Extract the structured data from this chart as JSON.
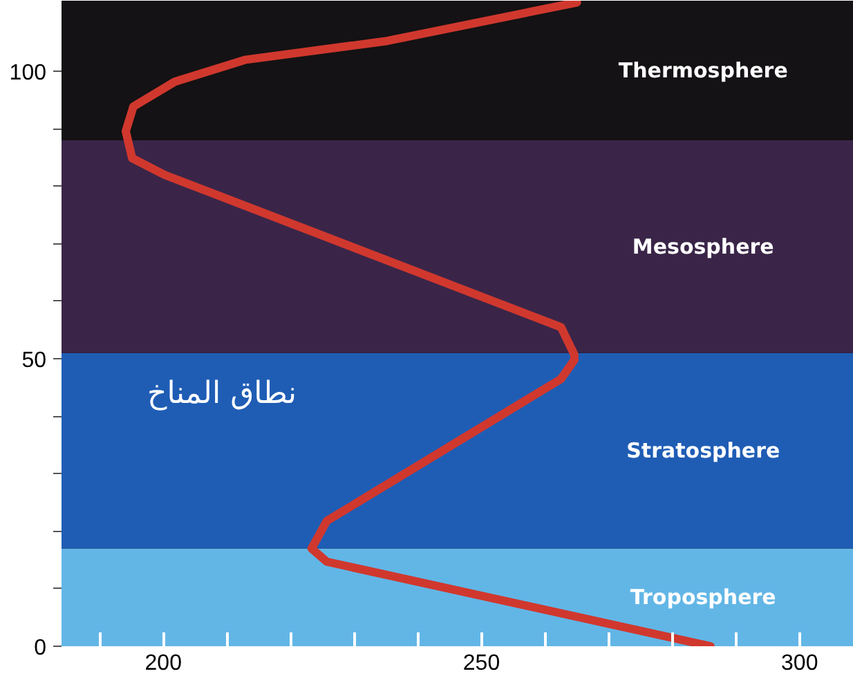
{
  "chart_data": {
    "type": "line",
    "x": [
      286,
      225.7,
      223.3,
      225.7,
      262.5,
      264.6,
      264.6,
      262.5,
      200.2,
      195.1,
      194.1,
      195.3,
      201.8,
      212.8,
      235.2,
      265
    ],
    "series": [
      {
        "color": "#d0382e",
        "values": [
          0,
          14.7,
          17,
          21.8,
          46.5,
          49.8,
          50.7,
          55.5,
          82,
          84.9,
          89.6,
          93.9,
          98.2,
          102,
          105.3,
          112
        ]
      }
    ],
    "xlim": [
      184,
      308.5
    ],
    "ylim": [
      0,
      112.3
    ],
    "xticks": [
      {
        "value": 190,
        "label": null
      },
      200,
      {
        "value": 210,
        "label": null
      },
      {
        "value": 220,
        "label": null
      },
      {
        "value": 230,
        "label": null
      },
      {
        "value": 240,
        "label": null
      },
      250,
      {
        "value": 260,
        "label": null
      },
      {
        "value": 270,
        "label": null
      },
      {
        "value": 280,
        "label": null
      },
      {
        "value": 290,
        "label": null
      },
      300
    ],
    "yticks": [
      0,
      {
        "value": 10,
        "label": null
      },
      {
        "value": 20,
        "label": null
      },
      {
        "value": 30,
        "label": null
      },
      {
        "value": 40,
        "label": null
      },
      50,
      {
        "value": 60,
        "label": null
      },
      {
        "value": 70,
        "label": null
      },
      {
        "value": 80,
        "label": null
      },
      {
        "value": 90,
        "label": null
      },
      100
    ],
    "bands": [
      {
        "axis": "y",
        "from": 0,
        "to": 17,
        "label": "Troposphere",
        "color": "#62b6e6"
      },
      {
        "axis": "y",
        "from": 17,
        "to": 51,
        "label": "Stratosphere",
        "color": "#1f5db5"
      },
      {
        "axis": "y",
        "from": 51,
        "to": 88,
        "label": "Mesosphere",
        "color": "#3a2548"
      },
      {
        "axis": "y",
        "from": 88,
        "to": 112.3,
        "label": "Thermosphere",
        "color": "#141214"
      }
    ],
    "annotations": [
      "نطاق المناخ"
    ],
    "grid": false,
    "marker": "none",
    "line_style": "solid"
  }
}
